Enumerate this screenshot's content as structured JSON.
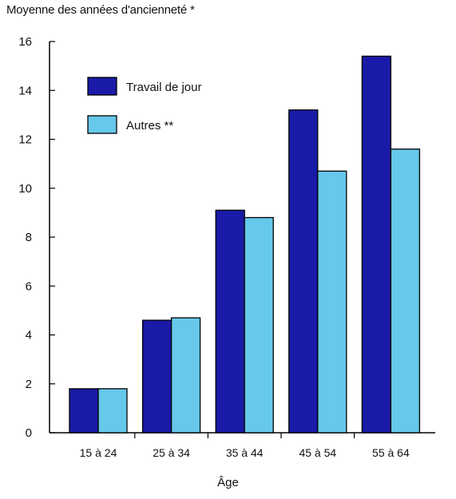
{
  "chart_data": {
    "type": "bar",
    "ylabel": "Moyenne des années d'ancienneté *",
    "xlabel": "Âge",
    "categories": [
      "15 à 24",
      "25 à 34",
      "35 à 44",
      "45 à 54",
      "55 à 64"
    ],
    "series": [
      {
        "name": "Travail de jour",
        "values": [
          1.8,
          4.6,
          9.1,
          13.2,
          15.4
        ],
        "color": "#1a1aa8"
      },
      {
        "name": "Autres **",
        "values": [
          1.8,
          4.7,
          8.8,
          10.7,
          11.6
        ],
        "color": "#66c8ea"
      }
    ],
    "ylim": [
      0,
      16
    ],
    "yticks": [
      0,
      2,
      4,
      6,
      8,
      10,
      12,
      14,
      16
    ],
    "legend_position": "top-left",
    "grid": false
  }
}
